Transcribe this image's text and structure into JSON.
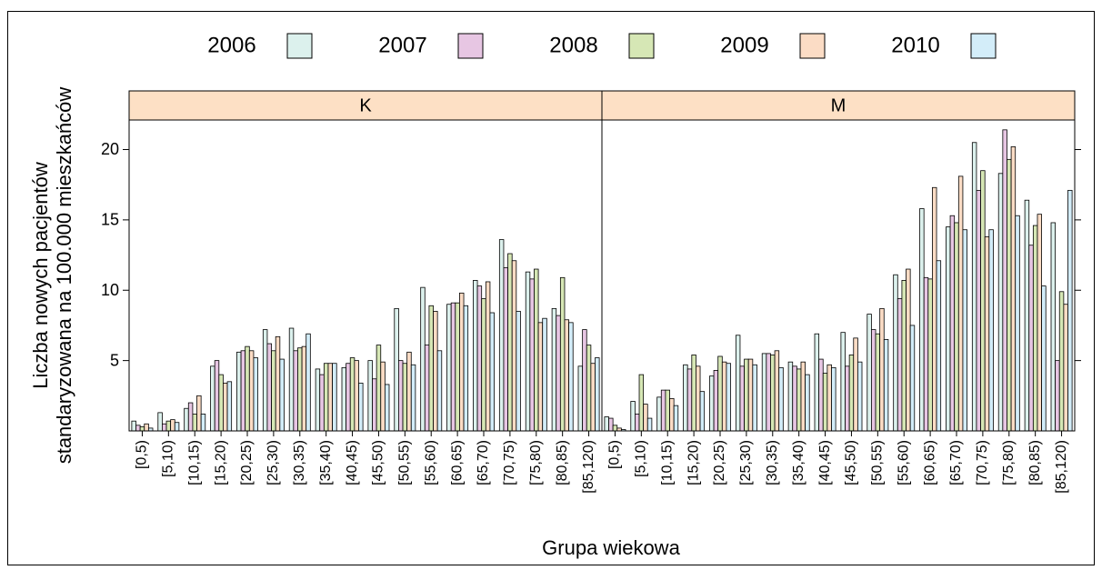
{
  "chart_data": {
    "type": "bar",
    "xlabel": "Grupa wiekowa",
    "ylabel": [
      "Liczba nowych pacjentów",
      "standaryzowana na 100.000 mieszkańców"
    ],
    "categories": [
      "[0,5)",
      "[5,10)",
      "[10,15)",
      "[15,20)",
      "[20,25)",
      "[25,30)",
      "[30,35)",
      "[35,40)",
      "[40,45)",
      "[45,50)",
      "[50,55)",
      "[55,60)",
      "[60,65)",
      "[65,70)",
      "[70,75)",
      "[75,80)",
      "[80,85)",
      "[85,120)"
    ],
    "ylim": [
      0,
      22.1
    ],
    "yticks": [
      5,
      10,
      15,
      20
    ],
    "strip_color": "#fde0c5",
    "series": [
      {
        "name": "2006",
        "color": "#dcf1ed"
      },
      {
        "name": "2007",
        "color": "#e7c6e3"
      },
      {
        "name": "2008",
        "color": "#d6e7b5"
      },
      {
        "name": "2009",
        "color": "#fbdcc5"
      },
      {
        "name": "2010",
        "color": "#d3edf9"
      }
    ],
    "panels": [
      {
        "label": "K",
        "values": [
          [
            0.7,
            1.3,
            1.6,
            4.6,
            5.6,
            7.2,
            7.3,
            4.4,
            4.5,
            5.0,
            8.7,
            10.2,
            9.0,
            10.7,
            13.6,
            11.3,
            8.7,
            4.6
          ],
          [
            0.4,
            0.5,
            2.0,
            5.0,
            5.7,
            6.2,
            5.7,
            4.0,
            4.8,
            3.7,
            5.0,
            6.1,
            9.1,
            10.3,
            11.6,
            10.8,
            8.2,
            7.2
          ],
          [
            0.3,
            0.7,
            1.2,
            4.0,
            6.0,
            5.7,
            5.9,
            4.8,
            5.2,
            6.1,
            4.8,
            8.9,
            9.1,
            9.4,
            12.6,
            11.5,
            10.9,
            6.1
          ],
          [
            0.5,
            0.8,
            2.5,
            3.4,
            5.7,
            6.7,
            6.0,
            4.8,
            5.0,
            4.9,
            5.6,
            8.5,
            9.8,
            10.6,
            12.1,
            7.7,
            7.9,
            4.8
          ],
          [
            0.2,
            0.6,
            1.2,
            3.5,
            5.2,
            5.1,
            6.9,
            4.8,
            3.4,
            3.3,
            4.7,
            5.7,
            8.9,
            8.4,
            8.5,
            8.0,
            7.7,
            5.2
          ]
        ]
      },
      {
        "label": "M",
        "values": [
          [
            1.0,
            2.1,
            2.4,
            4.7,
            3.9,
            6.8,
            5.5,
            4.9,
            6.9,
            7.0,
            8.3,
            11.1,
            15.8,
            14.5,
            20.5,
            18.3,
            16.4,
            14.8
          ],
          [
            0.9,
            1.2,
            2.9,
            4.4,
            4.3,
            4.6,
            5.5,
            4.6,
            5.1,
            4.6,
            7.2,
            9.4,
            10.9,
            15.3,
            17.1,
            21.4,
            13.2,
            5.0
          ],
          [
            0.4,
            4.0,
            2.9,
            5.4,
            5.3,
            5.1,
            5.4,
            4.4,
            4.1,
            5.4,
            6.9,
            10.7,
            10.8,
            14.8,
            18.5,
            19.3,
            14.6,
            9.9
          ],
          [
            0.2,
            1.9,
            2.3,
            4.6,
            4.9,
            5.1,
            5.7,
            4.9,
            4.7,
            6.6,
            8.7,
            11.5,
            17.3,
            18.1,
            13.8,
            20.2,
            15.4,
            9.0
          ],
          [
            0.1,
            0.9,
            1.8,
            2.8,
            4.8,
            4.7,
            4.5,
            4.0,
            4.5,
            4.9,
            6.5,
            7.5,
            12.1,
            14.3,
            14.3,
            15.3,
            10.3,
            17.1
          ]
        ]
      }
    ]
  }
}
